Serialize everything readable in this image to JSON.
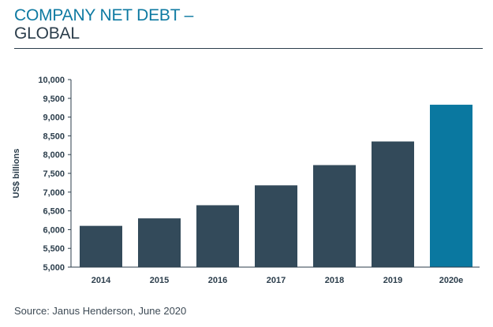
{
  "chart_data": {
    "type": "bar",
    "title_line1": "COMPANY NET DEBT –",
    "title_line2": "GLOBAL",
    "xlabel": "",
    "ylabel": "US$ billions",
    "categories": [
      "2014",
      "2015",
      "2016",
      "2017",
      "2018",
      "2019",
      "2020e"
    ],
    "values": [
      6100,
      6300,
      6650,
      7180,
      7720,
      8350,
      9330
    ],
    "ylim": [
      5000,
      10000
    ],
    "yticks": [
      5000,
      5500,
      6000,
      6500,
      7000,
      7500,
      8000,
      8500,
      9000,
      9500,
      10000
    ],
    "ytick_labels": [
      "5,000",
      "5,500",
      "6,000",
      "6,500",
      "7,000",
      "7,500",
      "8,000",
      "8,500",
      "9,000",
      "9,500",
      "10,000"
    ],
    "bar_colors": [
      "#334a5a",
      "#334a5a",
      "#334a5a",
      "#334a5a",
      "#334a5a",
      "#334a5a",
      "#0a78a0"
    ],
    "grid": false,
    "legend": "none"
  },
  "source": "Source: Janus Henderson, June 2020",
  "colors": {
    "title_accent": "#0e7aa2",
    "title_dark": "#2b3d4b",
    "axis": "#2b3d4b"
  }
}
